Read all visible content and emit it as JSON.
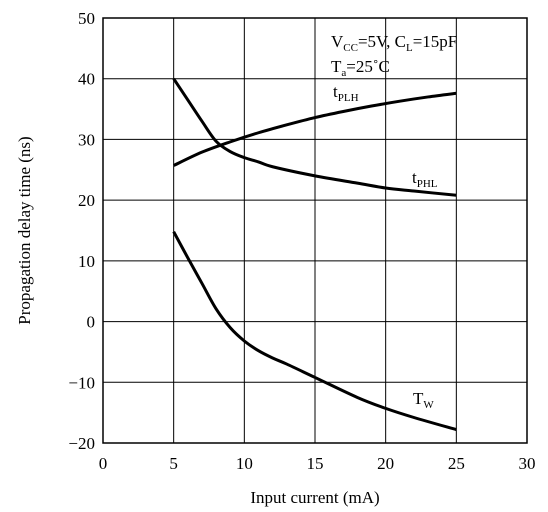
{
  "chart_data": {
    "type": "line",
    "xlabel": "Input current (mA)",
    "ylabel": "Propagation delay time (ns)",
    "xlim": [
      0,
      30
    ],
    "ylim": [
      -20,
      50
    ],
    "xticks": [
      "0",
      "5",
      "10",
      "15",
      "20",
      "25",
      "30"
    ],
    "yticks": [
      "50",
      "40",
      "30",
      "20",
      "10",
      "0",
      "−10",
      "−20"
    ],
    "grid": true,
    "conditions": {
      "line1": {
        "v": "V",
        "vsub": "CC",
        "vmid": "=5V, C",
        "csub": "L",
        "cend": "=15pF"
      },
      "line2": {
        "t": "T",
        "tsub": "a",
        "tend": "=25˚C"
      }
    },
    "series": [
      {
        "name": "tPLH",
        "label_main": "t",
        "label_sub": "PLH",
        "x": [
          5,
          7,
          9,
          11,
          13,
          15,
          17,
          19,
          21,
          23,
          25
        ],
        "y": [
          25.7,
          27.9,
          29.6,
          31.1,
          32.4,
          33.6,
          34.6,
          35.5,
          36.3,
          37.0,
          37.6
        ]
      },
      {
        "name": "tPHL",
        "label_main": "t",
        "label_sub": "PHL",
        "x": [
          5,
          6,
          7,
          8,
          9,
          10,
          11,
          12,
          15,
          18,
          20,
          22,
          25
        ],
        "y": [
          40.0,
          36.5,
          33.0,
          29.7,
          28.0,
          27.0,
          26.3,
          25.5,
          24.0,
          22.8,
          22.0,
          21.5,
          20.8
        ]
      },
      {
        "name": "TW",
        "label_main": "T",
        "label_sub": "W",
        "x": [
          5,
          6,
          7,
          8,
          9,
          10,
          11,
          12,
          13,
          15,
          18,
          20,
          22,
          25
        ],
        "y": [
          14.8,
          10.5,
          6.3,
          2.1,
          -1.0,
          -3.2,
          -4.8,
          -6.0,
          -7.0,
          -9.2,
          -12.5,
          -14.3,
          -15.8,
          -17.8
        ]
      }
    ]
  }
}
